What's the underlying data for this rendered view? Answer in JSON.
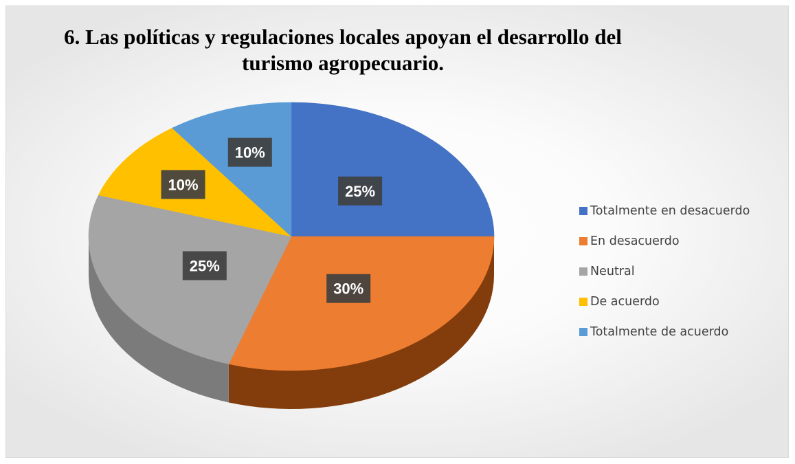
{
  "chart_data": {
    "type": "pie",
    "title": "6. Las políticas y regulaciones locales apoyan el desarrollo del turismo agropecuario.",
    "categories": [
      "Totalmente en desacuerdo",
      "En desacuerdo",
      "Neutral",
      "De acuerdo",
      "Totalmente de acuerdo"
    ],
    "values": [
      25,
      30,
      25,
      10,
      10
    ],
    "labels": [
      "25%",
      "30%",
      "25%",
      "10%",
      "10%"
    ],
    "colors": [
      "#4472C4",
      "#ED7D31",
      "#A5A5A5",
      "#FFC000",
      "#5B9BD5"
    ],
    "side_colors": [
      "#2F528F",
      "#833C0B",
      "#7B7B7B",
      "#BF9000",
      "#41719C"
    ],
    "legend_position": "right",
    "style": "3d"
  }
}
